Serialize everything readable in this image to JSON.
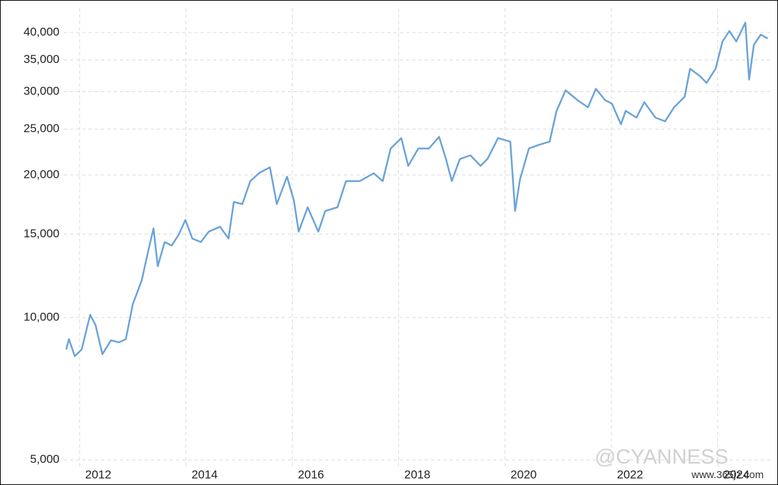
{
  "chart_data": {
    "type": "line",
    "log_scale": true,
    "grid": true,
    "color": "#6aa3d8",
    "xlim": [
      2011.7,
      2025.03
    ],
    "xticks": [
      2012,
      2014,
      2016,
      2018,
      2020,
      2022,
      2024
    ],
    "ylim": [
      4830,
      45000
    ],
    "yticks": [
      {
        "value": 5000,
        "label": "5,000"
      },
      {
        "value": 10000,
        "label": "10,000"
      },
      {
        "value": 15000,
        "label": "15,000"
      },
      {
        "value": 20000,
        "label": "20,000"
      },
      {
        "value": 25000,
        "label": "25,000"
      },
      {
        "value": 30000,
        "label": "30,000"
      },
      {
        "value": 35000,
        "label": "35,000"
      },
      {
        "value": 40000,
        "label": "40,000"
      }
    ],
    "annotations": [
      "@CYANNESS",
      "www.365jz.com"
    ],
    "x": [
      2011.75,
      2011.8,
      2011.91,
      2012.04,
      2012.2,
      2012.3,
      2012.43,
      2012.59,
      2012.74,
      2012.87,
      2013.0,
      2013.17,
      2013.3,
      2013.39,
      2013.47,
      2013.6,
      2013.73,
      2013.86,
      2013.99,
      2014.12,
      2014.28,
      2014.43,
      2014.64,
      2014.8,
      2014.9,
      2015.06,
      2015.21,
      2015.38,
      2015.58,
      2015.71,
      2015.9,
      2016.03,
      2016.12,
      2016.29,
      2016.49,
      2016.62,
      2016.85,
      2017.01,
      2017.27,
      2017.53,
      2017.7,
      2017.85,
      2018.05,
      2018.18,
      2018.37,
      2018.57,
      2018.76,
      2018.89,
      2019.0,
      2019.15,
      2019.35,
      2019.54,
      2019.67,
      2019.87,
      2020.1,
      2020.19,
      2020.28,
      2020.45,
      2020.65,
      2020.84,
      2020.97,
      2021.14,
      2021.36,
      2021.56,
      2021.71,
      2021.88,
      2022.01,
      2022.18,
      2022.27,
      2022.47,
      2022.62,
      2022.83,
      2023.01,
      2023.18,
      2023.38,
      2023.48,
      2023.66,
      2023.79,
      2023.96,
      2024.09,
      2024.22,
      2024.35,
      2024.52,
      2024.59,
      2024.68,
      2024.81,
      2024.94
    ],
    "values": [
      8560,
      9000,
      8280,
      8560,
      10130,
      9640,
      8360,
      8950,
      8860,
      9000,
      10660,
      11990,
      13950,
      15430,
      12830,
      14430,
      14190,
      14930,
      16070,
      14680,
      14430,
      15180,
      15550,
      14680,
      17540,
      17360,
      19410,
      20200,
      20760,
      17360,
      19830,
      17650,
      15180,
      17090,
      15180,
      16790,
      17090,
      19410,
      19410,
      20170,
      19410,
      22750,
      23930,
      20900,
      22750,
      22750,
      24080,
      21610,
      19410,
      21610,
      22010,
      20900,
      21610,
      23930,
      23520,
      16790,
      19540,
      22750,
      23180,
      23520,
      27320,
      30200,
      28800,
      27800,
      30420,
      28800,
      28300,
      25590,
      27320,
      26440,
      28500,
      26440,
      25970,
      27800,
      29290,
      33530,
      32400,
      31300,
      33530,
      38300,
      40300,
      38300,
      41970,
      31800,
      37680,
      39600,
      38840
    ]
  }
}
